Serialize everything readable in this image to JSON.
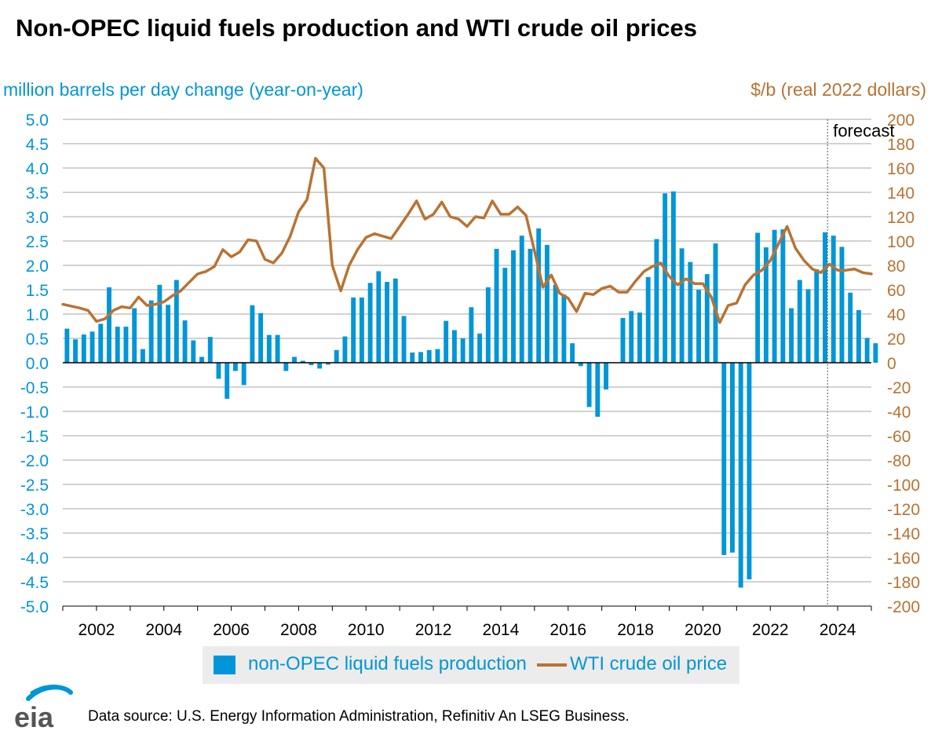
{
  "title": "Non-OPEC liquid fuels production and WTI crude oil prices",
  "colors": {
    "bar": "#0096d7",
    "line": "#b87333",
    "left_axis": "#0096d7",
    "right_axis": "#b87333",
    "grid": "#a6a6a6"
  },
  "legend": {
    "bar_label": "non-OPEC liquid fuels production",
    "line_label": "WTI crude oil price"
  },
  "source": "Data source: U.S. Energy Information Administration, Refinitiv An LSEG Business.",
  "logo_text": "eia",
  "chart_data": {
    "type": "bar+line",
    "title": "Non-OPEC liquid fuels production and WTI crude oil prices",
    "left_axis_label": "million barrels per day change (year-on-year)",
    "right_axis_label": "$/b (real 2022 dollars)",
    "left_range": [
      -5,
      5
    ],
    "left_ticks": [
      "5.0",
      "4.5",
      "4.0",
      "3.5",
      "3.0",
      "2.5",
      "2.0",
      "1.5",
      "1.0",
      "0.5",
      "0.0",
      "-0.5",
      "-1.0",
      "-1.5",
      "-2.0",
      "-2.5",
      "-3.0",
      "-3.5",
      "-4.0",
      "-4.5",
      "-5.0"
    ],
    "right_range": [
      -200,
      200
    ],
    "right_ticks": [
      "200",
      "180",
      "160",
      "140",
      "120",
      "100",
      "80",
      "60",
      "40",
      "20",
      "0",
      "-20",
      "-40",
      "-60",
      "-80",
      "-100",
      "-120",
      "-140",
      "-160",
      "-180",
      "-200"
    ],
    "x_range": [
      2001.0,
      2025.0
    ],
    "x_tick_labels": [
      "2002",
      "2004",
      "2006",
      "2008",
      "2010",
      "2012",
      "2014",
      "2016",
      "2018",
      "2020",
      "2022",
      "2024"
    ],
    "grid": true,
    "forecast_label": "forecast",
    "forecast_start": 2023.7,
    "series": [
      {
        "name": "non-OPEC liquid fuels production",
        "type": "bar",
        "quarterly_start": 2001.0,
        "values": [
          0.7,
          0.48,
          0.58,
          0.64,
          0.8,
          1.55,
          0.74,
          0.74,
          1.12,
          0.28,
          1.28,
          1.6,
          1.19,
          1.7,
          0.87,
          0.46,
          0.12,
          0.53,
          -0.33,
          -0.74,
          -0.17,
          -0.46,
          1.18,
          1.02,
          0.57,
          0.57,
          -0.17,
          0.12,
          0.04,
          -0.05,
          -0.12,
          -0.04,
          0.26,
          0.54,
          1.34,
          1.34,
          1.64,
          1.88,
          1.66,
          1.73,
          0.96,
          0.21,
          0.22,
          0.26,
          0.28,
          0.86,
          0.67,
          0.5,
          1.14,
          0.6,
          1.55,
          2.34,
          1.95,
          2.31,
          2.61,
          2.34,
          2.76,
          2.42,
          1.6,
          1.4,
          0.4,
          -0.07,
          -0.91,
          -1.11,
          -0.55,
          0.0,
          0.92,
          1.06,
          1.03,
          1.76,
          2.54,
          3.48,
          3.52,
          2.35,
          2.07,
          1.5,
          1.82,
          2.45,
          -3.95,
          -3.9,
          -4.62,
          -4.45,
          2.67,
          2.37,
          2.73,
          2.74,
          1.12,
          1.7,
          1.51,
          1.92,
          2.68,
          2.61,
          2.38,
          1.44,
          1.08,
          0.51,
          0.4
        ]
      },
      {
        "name": "WTI crude oil price",
        "type": "line",
        "points": [
          [
            2001.0,
            48
          ],
          [
            2001.5,
            45
          ],
          [
            2001.75,
            43
          ],
          [
            2002.0,
            34
          ],
          [
            2002.25,
            36
          ],
          [
            2002.5,
            43
          ],
          [
            2002.75,
            46
          ],
          [
            2003.0,
            45
          ],
          [
            2003.25,
            54
          ],
          [
            2003.5,
            47
          ],
          [
            2003.75,
            48
          ],
          [
            2004.0,
            50
          ],
          [
            2004.25,
            55
          ],
          [
            2004.5,
            59
          ],
          [
            2004.75,
            66
          ],
          [
            2005.0,
            73
          ],
          [
            2005.25,
            75
          ],
          [
            2005.5,
            79
          ],
          [
            2005.75,
            93
          ],
          [
            2006.0,
            87
          ],
          [
            2006.25,
            91
          ],
          [
            2006.5,
            101
          ],
          [
            2006.75,
            100
          ],
          [
            2007.0,
            85
          ],
          [
            2007.25,
            82
          ],
          [
            2007.5,
            90
          ],
          [
            2007.75,
            104
          ],
          [
            2008.0,
            124
          ],
          [
            2008.25,
            134
          ],
          [
            2008.5,
            168
          ],
          [
            2008.75,
            160
          ],
          [
            2009.0,
            80
          ],
          [
            2009.25,
            59
          ],
          [
            2009.5,
            80
          ],
          [
            2009.75,
            93
          ],
          [
            2010.0,
            103
          ],
          [
            2010.25,
            106
          ],
          [
            2010.5,
            104
          ],
          [
            2010.75,
            102
          ],
          [
            2011.0,
            112
          ],
          [
            2011.25,
            122
          ],
          [
            2011.5,
            133
          ],
          [
            2011.75,
            118
          ],
          [
            2012.0,
            122
          ],
          [
            2012.25,
            132
          ],
          [
            2012.5,
            120
          ],
          [
            2012.75,
            118
          ],
          [
            2013.0,
            112
          ],
          [
            2013.25,
            120
          ],
          [
            2013.5,
            119
          ],
          [
            2013.75,
            133
          ],
          [
            2014.0,
            122
          ],
          [
            2014.25,
            122
          ],
          [
            2014.5,
            128
          ],
          [
            2014.75,
            121
          ],
          [
            2015.0,
            92
          ],
          [
            2015.25,
            62
          ],
          [
            2015.5,
            72
          ],
          [
            2015.75,
            57
          ],
          [
            2016.0,
            53
          ],
          [
            2016.25,
            42
          ],
          [
            2016.5,
            57
          ],
          [
            2016.75,
            56
          ],
          [
            2017.0,
            61
          ],
          [
            2017.25,
            63
          ],
          [
            2017.5,
            58
          ],
          [
            2017.75,
            58
          ],
          [
            2018.0,
            67
          ],
          [
            2018.25,
            75
          ],
          [
            2018.5,
            79
          ],
          [
            2018.75,
            82
          ],
          [
            2019.0,
            71
          ],
          [
            2019.25,
            64
          ],
          [
            2019.5,
            69
          ],
          [
            2019.75,
            65
          ],
          [
            2020.0,
            65
          ],
          [
            2020.25,
            54
          ],
          [
            2020.5,
            33
          ],
          [
            2020.75,
            47
          ],
          [
            2021.0,
            49
          ],
          [
            2021.25,
            64
          ],
          [
            2021.5,
            72
          ],
          [
            2021.75,
            76
          ],
          [
            2022.0,
            84
          ],
          [
            2022.25,
            98
          ],
          [
            2022.5,
            112
          ],
          [
            2022.75,
            94
          ],
          [
            2023.0,
            84
          ],
          [
            2023.25,
            77
          ],
          [
            2023.5,
            74
          ],
          [
            2023.75,
            81
          ],
          [
            2024.0,
            76
          ],
          [
            2024.25,
            76
          ],
          [
            2024.5,
            77
          ],
          [
            2024.75,
            74
          ],
          [
            2025.0,
            73
          ]
        ]
      }
    ]
  }
}
